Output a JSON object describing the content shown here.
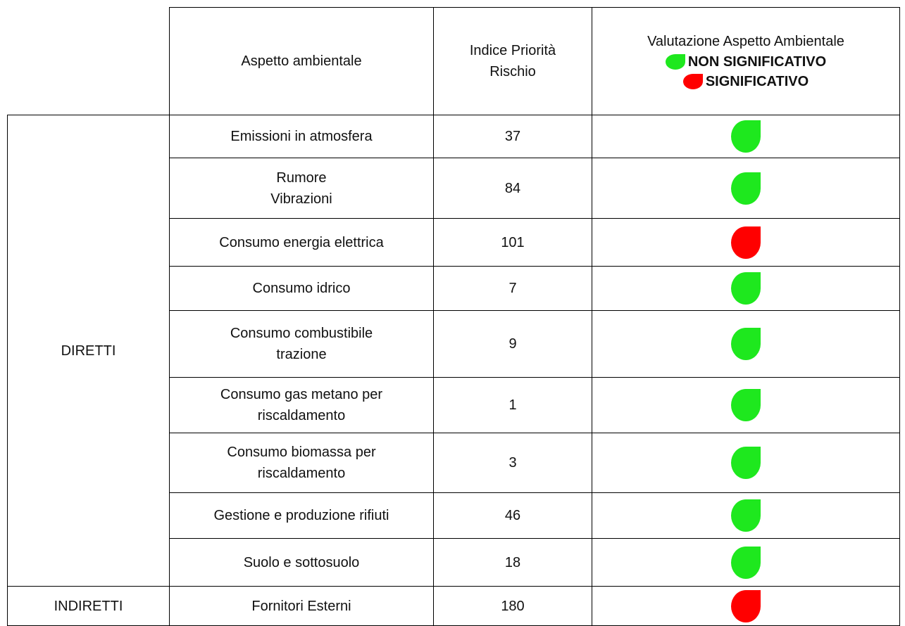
{
  "header": {
    "aspect": "Aspetto ambientale",
    "index": [
      "Indice Priorità",
      "Rischio"
    ],
    "evaluation": "Valutazione Aspetto Ambientale"
  },
  "legend": [
    {
      "label": "NON SIGNIFICATIVO",
      "color": "#1ee81e"
    },
    {
      "label": "SIGNIFICATIVO",
      "color": "#ff0000"
    }
  ],
  "groups": [
    {
      "name": "DIRETTI",
      "rows": [
        {
          "aspect": [
            "Emissioni in atmosfera"
          ],
          "index": "37",
          "color": "#1ee81e"
        },
        {
          "aspect": [
            "Rumore",
            "Vibrazioni"
          ],
          "index": "84",
          "color": "#1ee81e"
        },
        {
          "aspect": [
            "Consumo energia elettrica"
          ],
          "index": "101",
          "color": "#ff0000"
        },
        {
          "aspect": [
            "Consumo idrico"
          ],
          "index": "7",
          "color": "#1ee81e"
        },
        {
          "aspect": [
            "Consumo combustibile",
            "trazione"
          ],
          "index": "9",
          "color": "#1ee81e"
        },
        {
          "aspect": [
            "Consumo gas metano per",
            "riscaldamento"
          ],
          "index": "1",
          "color": "#1ee81e"
        },
        {
          "aspect": [
            "Consumo biomassa per",
            "riscaldamento"
          ],
          "index": "3",
          "color": "#1ee81e"
        },
        {
          "aspect": [
            "Gestione e produzione rifiuti"
          ],
          "index": "46",
          "color": "#1ee81e"
        },
        {
          "aspect": [
            "Suolo e sottosuolo"
          ],
          "index": "18",
          "color": "#1ee81e"
        }
      ]
    },
    {
      "name": "INDIRETTI",
      "rows": [
        {
          "aspect": [
            "Fornitori Esterni"
          ],
          "index": "180",
          "color": "#ff0000"
        }
      ]
    }
  ]
}
